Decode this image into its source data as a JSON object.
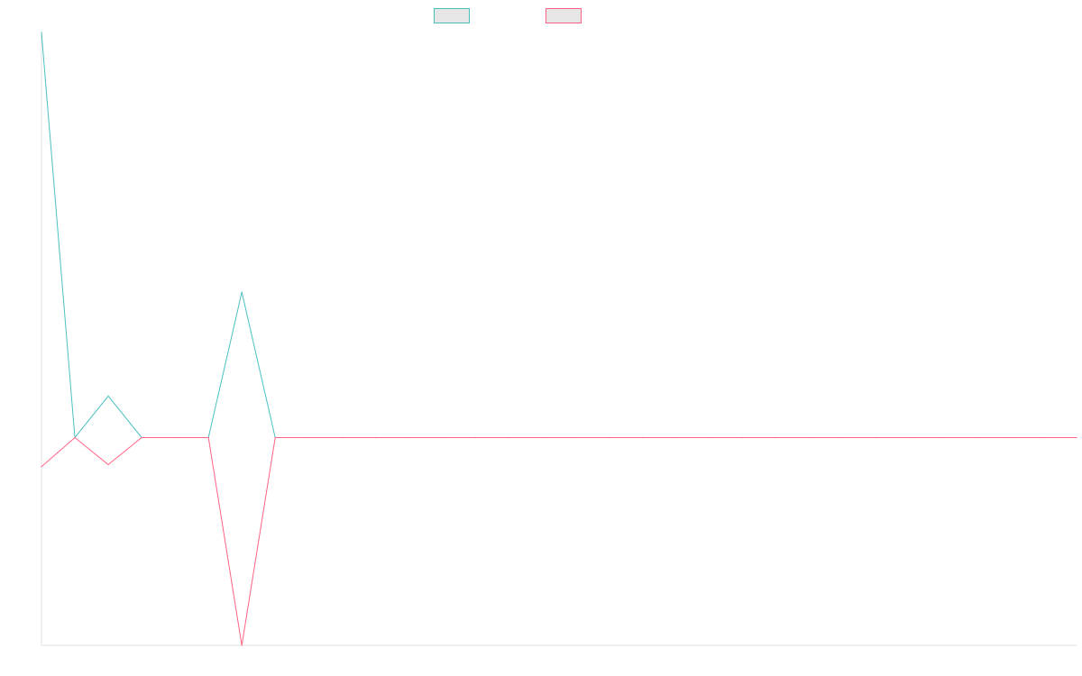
{
  "chart_data": {
    "type": "line",
    "title": "",
    "xlabel": "",
    "ylabel": "",
    "x": [
      0,
      1,
      2,
      3,
      4,
      5,
      6,
      7,
      8,
      9,
      10,
      11,
      12,
      13,
      14,
      15,
      16,
      17,
      18,
      19,
      20,
      21,
      22,
      23,
      24,
      25,
      26,
      27,
      28,
      29,
      30,
      31
    ],
    "xlim": [
      0,
      31
    ],
    "ylim": [
      -100,
      195
    ],
    "grid": false,
    "legend_position": "top",
    "series": [
      {
        "name": "",
        "color": "#4bc0c0",
        "fill": "#e6e6e6",
        "values": [
          195,
          0,
          20,
          0,
          0,
          0,
          70,
          0,
          0,
          0,
          0,
          0,
          0,
          0,
          0,
          0,
          0,
          0,
          0,
          0,
          0,
          0,
          0,
          0,
          0,
          0,
          0,
          0,
          0,
          0,
          0,
          0
        ]
      },
      {
        "name": "",
        "color": "#ff6384",
        "fill": "#e6e6e6",
        "values": [
          -14,
          0,
          -13,
          0,
          0,
          0,
          -100,
          0,
          0,
          0,
          0,
          0,
          0,
          0,
          0,
          0,
          0,
          0,
          0,
          0,
          0,
          0,
          0,
          0,
          0,
          0,
          0,
          0,
          0,
          0,
          0,
          0
        ]
      }
    ],
    "axis_color": "#e0e0e0"
  }
}
